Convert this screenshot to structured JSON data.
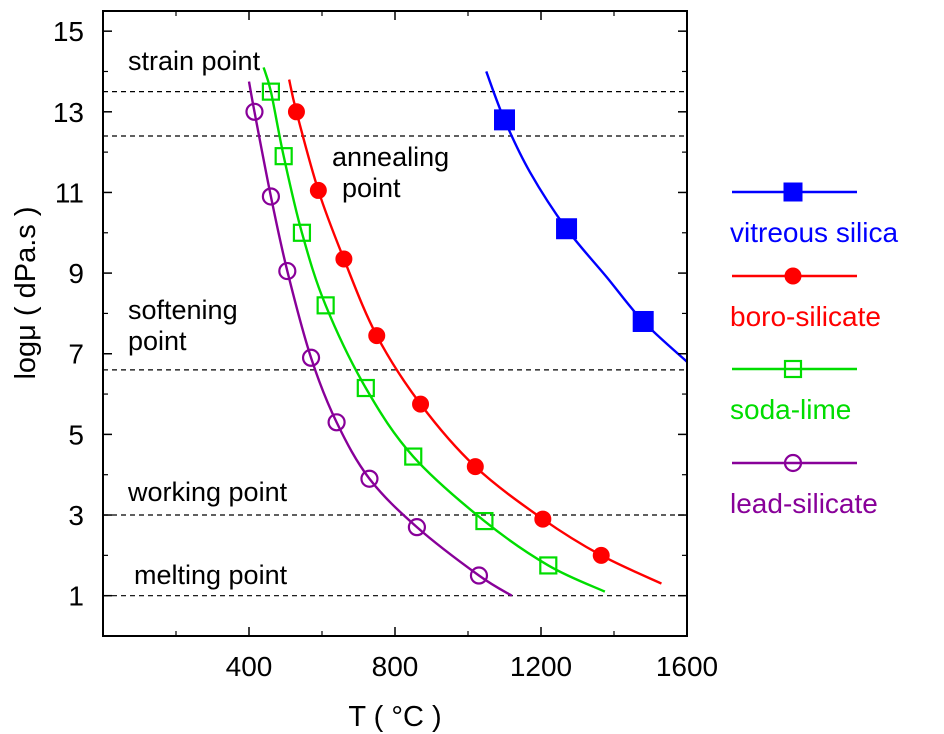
{
  "chart_data": {
    "type": "line",
    "title": "",
    "xlabel": "T ( °C )",
    "ylabel": "logμ ( dPa.s )",
    "xlim": [
      0,
      1600
    ],
    "ylim": [
      0,
      15.5
    ],
    "xticks": [
      400,
      800,
      1200,
      1600
    ],
    "yticks": [
      1,
      3,
      5,
      7,
      9,
      11,
      13,
      15
    ],
    "grid": false,
    "legend_position": "right-outside",
    "reference_lines": [
      {
        "y": 13.5,
        "label": "strain point"
      },
      {
        "y": 12.4,
        "label": "annealing\npoint"
      },
      {
        "y": 6.6,
        "label": "softening\npoint"
      },
      {
        "y": 3.0,
        "label": "working point"
      },
      {
        "y": 1.0,
        "label": "melting point"
      }
    ],
    "series": [
      {
        "name": "vitreous silica",
        "color": "#0000ff",
        "marker": "square-filled",
        "points": [
          [
            1100,
            12.8
          ],
          [
            1270,
            10.1
          ],
          [
            1480,
            7.8
          ]
        ],
        "curve": [
          [
            1050,
            14.0
          ],
          [
            1100,
            12.8
          ],
          [
            1170,
            11.5
          ],
          [
            1270,
            10.1
          ],
          [
            1380,
            8.9
          ],
          [
            1480,
            7.8
          ],
          [
            1600,
            6.8
          ]
        ]
      },
      {
        "name": "boro-silicate",
        "color": "#ff0000",
        "marker": "circle-filled",
        "points": [
          [
            530,
            13.0
          ],
          [
            590,
            11.05
          ],
          [
            660,
            9.35
          ],
          [
            750,
            7.45
          ],
          [
            870,
            5.75
          ],
          [
            1020,
            4.2
          ],
          [
            1205,
            2.9
          ],
          [
            1365,
            2.0
          ]
        ],
        "curve": [
          [
            510,
            13.8
          ],
          [
            530,
            13.0
          ],
          [
            590,
            11.05
          ],
          [
            660,
            9.35
          ],
          [
            750,
            7.45
          ],
          [
            870,
            5.75
          ],
          [
            1020,
            4.2
          ],
          [
            1205,
            2.9
          ],
          [
            1365,
            2.0
          ],
          [
            1530,
            1.3
          ]
        ]
      },
      {
        "name": "soda-lime",
        "color": "#00dd00",
        "marker": "square-open",
        "points": [
          [
            460,
            13.5
          ],
          [
            495,
            11.9
          ],
          [
            545,
            10.0
          ],
          [
            610,
            8.2
          ],
          [
            720,
            6.15
          ],
          [
            850,
            4.45
          ],
          [
            1045,
            2.85
          ],
          [
            1220,
            1.75
          ]
        ],
        "curve": [
          [
            440,
            14.1
          ],
          [
            460,
            13.5
          ],
          [
            495,
            11.9
          ],
          [
            545,
            10.0
          ],
          [
            610,
            8.2
          ],
          [
            720,
            6.15
          ],
          [
            850,
            4.45
          ],
          [
            1045,
            2.85
          ],
          [
            1220,
            1.75
          ],
          [
            1375,
            1.1
          ]
        ]
      },
      {
        "name": "lead-silicate",
        "color": "#880099",
        "marker": "circle-open",
        "points": [
          [
            415,
            13.0
          ],
          [
            460,
            10.9
          ],
          [
            505,
            9.05
          ],
          [
            570,
            6.9
          ],
          [
            640,
            5.3
          ],
          [
            730,
            3.9
          ],
          [
            860,
            2.7
          ],
          [
            1030,
            1.5
          ]
        ],
        "curve": [
          [
            400,
            13.75
          ],
          [
            415,
            13.0
          ],
          [
            460,
            10.9
          ],
          [
            505,
            9.05
          ],
          [
            570,
            6.9
          ],
          [
            640,
            5.3
          ],
          [
            730,
            3.9
          ],
          [
            860,
            2.7
          ],
          [
            1030,
            1.5
          ],
          [
            1120,
            1.0
          ]
        ]
      }
    ]
  }
}
